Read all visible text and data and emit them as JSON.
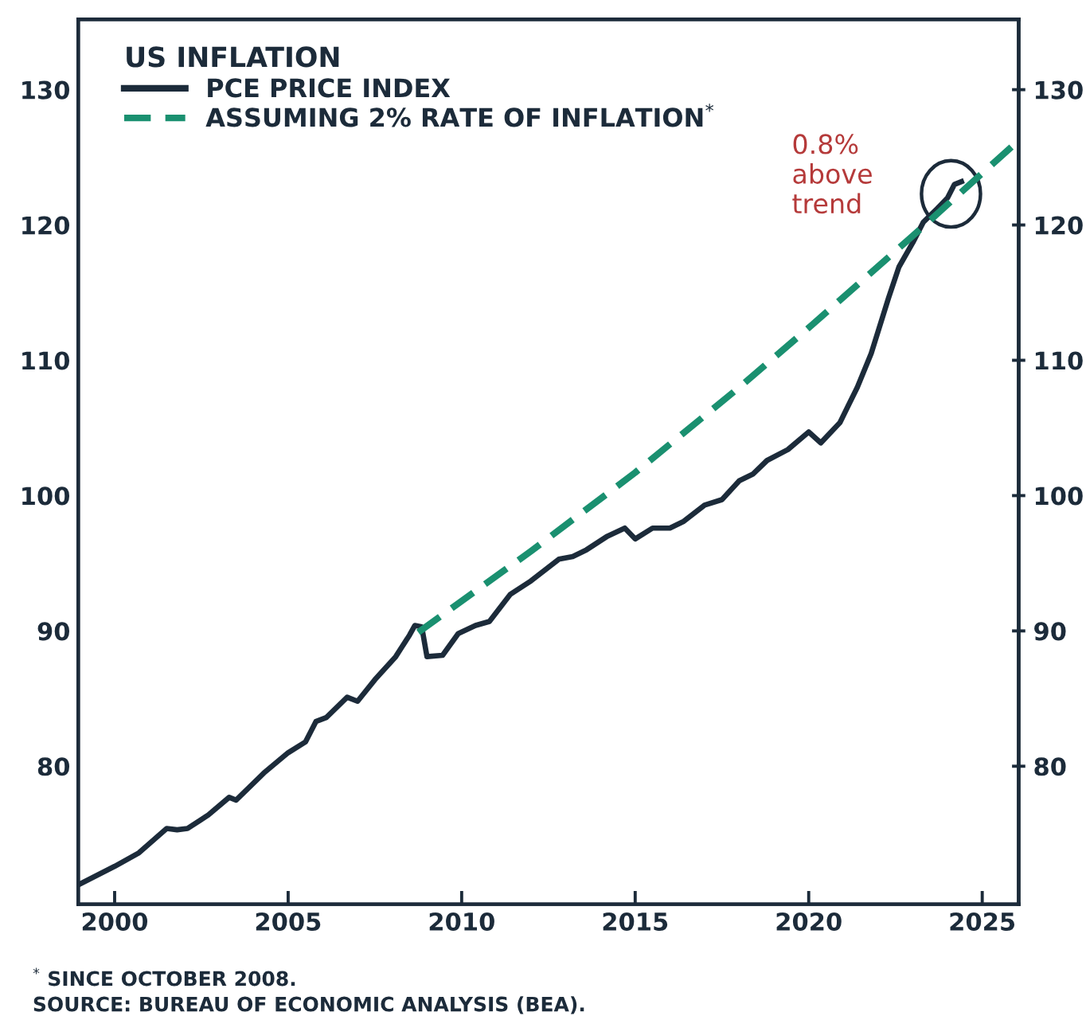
{
  "chart_data": {
    "type": "line",
    "legend_title": "US INFLATION",
    "series": [
      {
        "name": "PCE PRICE INDEX",
        "color": "#1c2b3a",
        "line_style": "solid",
        "x": [
          1999.0,
          2000.0,
          2000.7,
          2001.5,
          2001.8,
          2002.1,
          2002.7,
          2003.3,
          2003.5,
          2004.3,
          2005.0,
          2005.5,
          2005.8,
          2006.1,
          2006.7,
          2007.0,
          2007.5,
          2008.1,
          2008.5,
          2008.65,
          2008.85,
          2009.0,
          2009.45,
          2009.9,
          2010.4,
          2010.8,
          2011.4,
          2012.0,
          2012.4,
          2012.8,
          2013.2,
          2013.6,
          2014.2,
          2014.7,
          2015.0,
          2015.5,
          2016.0,
          2016.4,
          2017.0,
          2017.5,
          2018.0,
          2018.4,
          2018.8,
          2019.4,
          2020.0,
          2020.35,
          2020.9,
          2021.4,
          2021.8,
          2022.3,
          2022.6,
          2023.0,
          2023.3,
          2023.7,
          2024.0,
          2024.2,
          2024.4
        ],
        "values": [
          71.3,
          72.6,
          73.6,
          75.4,
          75.3,
          75.4,
          76.4,
          77.7,
          77.5,
          79.5,
          81.0,
          81.8,
          83.3,
          83.6,
          85.1,
          84.8,
          86.4,
          88.1,
          89.7,
          90.4,
          90.3,
          88.1,
          88.2,
          89.8,
          90.4,
          90.7,
          92.7,
          93.7,
          94.5,
          95.3,
          95.5,
          96.0,
          97.0,
          97.6,
          96.8,
          97.6,
          97.6,
          98.1,
          99.3,
          99.7,
          101.1,
          101.6,
          102.6,
          103.4,
          104.7,
          103.9,
          105.4,
          108.0,
          110.5,
          114.6,
          116.9,
          118.7,
          120.2,
          121.2,
          122.0,
          123.0,
          123.2
        ]
      },
      {
        "name": "ASSUMING 2% RATE OF INFLATION$^{*}$",
        "color": "#1a9070",
        "line_style": "dashed",
        "x": [
          2008.75,
          2012.0,
          2015.0,
          2018.0,
          2020.0,
          2023.0,
          2025.9
        ],
        "values": [
          89.9,
          95.9,
          101.7,
          108.0,
          112.4,
          119.2,
          125.9
        ]
      }
    ],
    "xlim": [
      1998.95,
      2026.05
    ],
    "xticks": [
      2000,
      2005,
      2010,
      2015,
      2020,
      2025
    ],
    "ylim": [
      69.8,
      135.2
    ],
    "yticks": [
      80,
      90,
      100,
      110,
      120,
      130
    ],
    "y2lim": [
      69.8,
      135.2
    ],
    "y2ticks": [
      80,
      90,
      100,
      110,
      120,
      130
    ],
    "grid": false,
    "legend": "top left",
    "annotations": [
      {
        "text": "0.8%\nabove\ntrend",
        "x": 2024.1,
        "y": 122.3
      },
      "$^{*}$ SINCE OCTOBER 2008.",
      "SOURCE: BUREAU OF ECONOMIC ANALYSIS (BEA)."
    ]
  }
}
